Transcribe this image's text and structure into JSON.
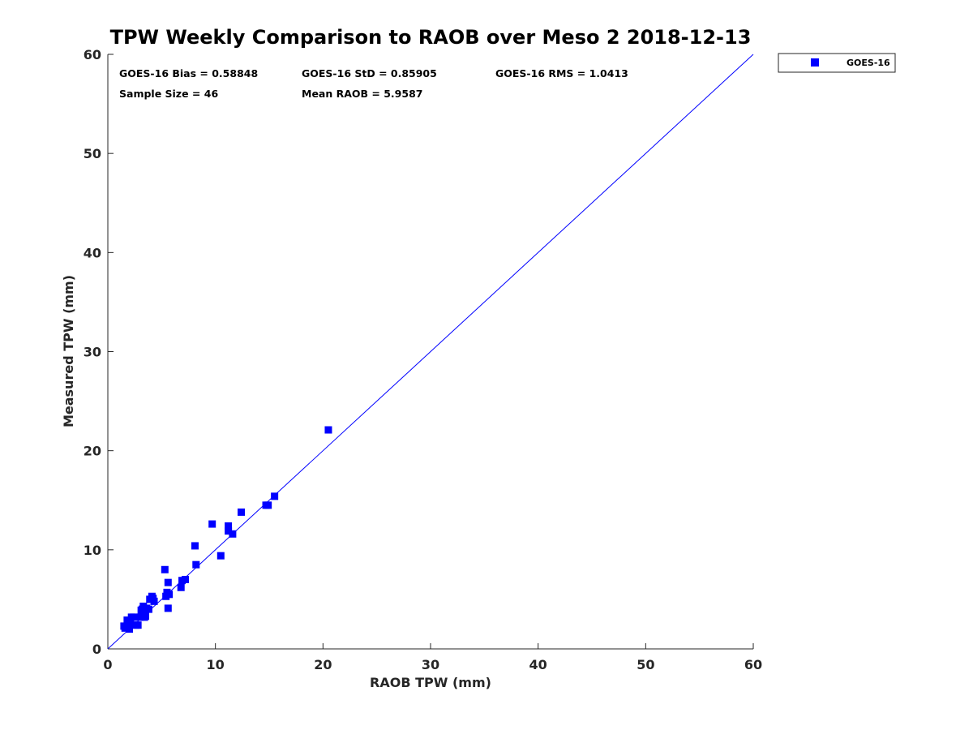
{
  "chart_data": {
    "type": "scatter",
    "title": "TPW Weekly Comparison to RAOB over Meso 2 2018-12-13",
    "xlabel": "RAOB TPW (mm)",
    "ylabel": "Measured TPW (mm)",
    "xlim": [
      0,
      60
    ],
    "ylim": [
      0,
      60
    ],
    "xticks": [
      "0",
      "10",
      "20",
      "30",
      "40",
      "50",
      "60"
    ],
    "yticks": [
      "0",
      "10",
      "20",
      "30",
      "40",
      "50",
      "60"
    ],
    "grid": false,
    "legend_position": "top-right outside",
    "stats": {
      "bias": "GOES-16 Bias = 0.58848",
      "std": "GOES-16 StD = 0.85905",
      "rms": "GOES-16 RMS = 1.0413",
      "sample": "Sample Size = 46",
      "mean": "Mean RAOB = 5.9587"
    },
    "reference_line": {
      "name": "1:1 line",
      "x": [
        0,
        60
      ],
      "y": [
        0,
        60
      ],
      "color": "#0000ff"
    },
    "series": [
      {
        "name": "GOES-16",
        "color": "#0000ff",
        "marker": "square",
        "points": [
          [
            1.5,
            2.3
          ],
          [
            1.6,
            2.1
          ],
          [
            1.8,
            2.9
          ],
          [
            1.9,
            2.4
          ],
          [
            2.0,
            2.0
          ],
          [
            2.1,
            2.6
          ],
          [
            2.2,
            3.2
          ],
          [
            2.4,
            3.2
          ],
          [
            2.6,
            2.4
          ],
          [
            2.8,
            2.4
          ],
          [
            3.0,
            3.2
          ],
          [
            3.1,
            3.9
          ],
          [
            3.3,
            4.3
          ],
          [
            3.4,
            3.2
          ],
          [
            3.5,
            3.6
          ],
          [
            3.6,
            4.1
          ],
          [
            3.8,
            4.0
          ],
          [
            3.9,
            5.0
          ],
          [
            4.1,
            5.3
          ],
          [
            4.3,
            4.8
          ],
          [
            5.3,
            8.0
          ],
          [
            5.4,
            5.3
          ],
          [
            5.5,
            5.7
          ],
          [
            5.6,
            4.1
          ],
          [
            5.6,
            6.7
          ],
          [
            5.7,
            5.5
          ],
          [
            6.8,
            6.2
          ],
          [
            6.9,
            6.9
          ],
          [
            7.2,
            7.0
          ],
          [
            8.1,
            10.4
          ],
          [
            8.2,
            8.5
          ],
          [
            9.7,
            12.6
          ],
          [
            10.5,
            9.4
          ],
          [
            11.2,
            12.4
          ],
          [
            11.2,
            11.9
          ],
          [
            11.6,
            11.6
          ],
          [
            12.4,
            13.8
          ],
          [
            14.7,
            14.5
          ],
          [
            14.9,
            14.5
          ],
          [
            15.5,
            15.4
          ],
          [
            20.5,
            22.1
          ],
          [
            3.2,
            4.0
          ],
          [
            2.0,
            2.8
          ],
          [
            4.2,
            5.1
          ],
          [
            3.5,
            3.3
          ],
          [
            1.7,
            2.2
          ]
        ]
      }
    ]
  }
}
